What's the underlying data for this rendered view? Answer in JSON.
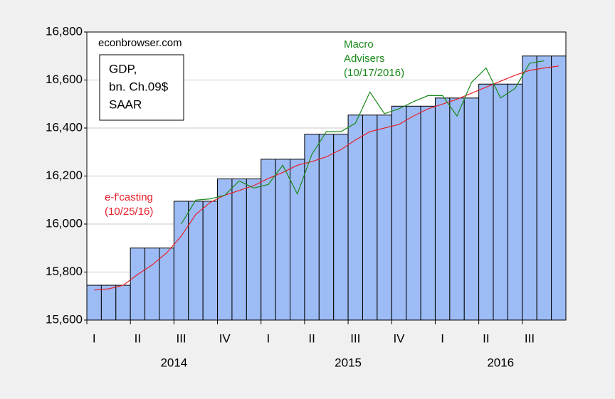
{
  "chart_data": {
    "type": "bar",
    "source": "econbrowser.com",
    "legend_box": [
      "GDP,",
      "bn. Ch.09$",
      "SAAR"
    ],
    "categories": [
      "I",
      null,
      null,
      "II",
      null,
      null,
      "III",
      null,
      null,
      "IV",
      null,
      null,
      "I",
      null,
      null,
      "II",
      null,
      null,
      "III",
      null,
      null,
      "IV",
      null,
      null,
      "I",
      null,
      null,
      "II",
      null,
      null,
      "III",
      null,
      null
    ],
    "years": [
      "2014",
      "2015",
      "2016"
    ],
    "ylim": [
      15600,
      16800
    ],
    "yticks": [
      {
        "value": 15600,
        "label": "15,600"
      },
      {
        "value": 15800,
        "label": "15,800"
      },
      {
        "value": 16000,
        "label": "16,000"
      },
      {
        "value": 16200,
        "label": "16,200"
      },
      {
        "value": 16400,
        "label": "16,400"
      },
      {
        "value": 16600,
        "label": "16,600"
      },
      {
        "value": 16800,
        "label": "16,800"
      }
    ],
    "grid": true,
    "series": [
      {
        "name": "GDP",
        "kind": "bar",
        "color": "#9dbcf5",
        "values": [
          15745,
          15745,
          15745,
          15900,
          15900,
          15900,
          16095,
          16095,
          16095,
          16188,
          16188,
          16188,
          16270,
          16270,
          16270,
          16374,
          16374,
          16374,
          16454,
          16454,
          16454,
          16491,
          16491,
          16491,
          16525,
          16525,
          16525,
          16583,
          16583,
          16583,
          16700,
          16700,
          16700
        ]
      },
      {
        "name": "e-f'casting",
        "date": "(10/25/16)",
        "kind": "line",
        "color": "#e8202a",
        "values": [
          15725,
          15730,
          15745,
          15790,
          15830,
          15880,
          15950,
          16040,
          16090,
          16120,
          16140,
          16160,
          16190,
          16215,
          16245,
          16260,
          16280,
          16310,
          16350,
          16385,
          16400,
          16415,
          16450,
          16480,
          16500,
          16520,
          16545,
          16570,
          16595,
          16620,
          16640,
          16650,
          16658
        ]
      },
      {
        "name": "Macro",
        "name2": "Advisers",
        "date": "(10/17/2016)",
        "kind": "line",
        "color": "#1a8a1a",
        "values": [
          null,
          null,
          null,
          null,
          null,
          null,
          16000,
          16100,
          16105,
          16120,
          16180,
          16150,
          16165,
          16245,
          16125,
          16290,
          16385,
          16385,
          16420,
          16550,
          16460,
          16480,
          16510,
          16535,
          16535,
          16450,
          16590,
          16650,
          16525,
          16565,
          16670,
          16680,
          null
        ]
      }
    ]
  }
}
